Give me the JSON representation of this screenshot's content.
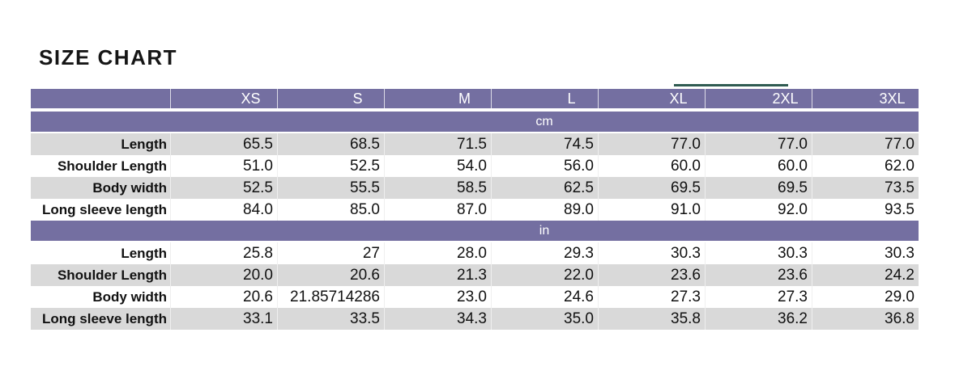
{
  "title": "SIZE CHART",
  "colors": {
    "header_purple": "#746FA1",
    "band_gray": "#D9D9D9",
    "selection_teal": "#2F5B51",
    "text_black": "#161616"
  },
  "table": {
    "size_headers": [
      "XS",
      "S",
      "M",
      "L",
      "XL",
      "2XL",
      "3XL"
    ],
    "sections": [
      {
        "unit": "cm",
        "rows": [
          {
            "label": "Length",
            "values": [
              "65.5",
              "68.5",
              "71.5",
              "74.5",
              "77.0",
              "77.0",
              "77.0"
            ]
          },
          {
            "label": "Shoulder Length",
            "values": [
              "51.0",
              "52.5",
              "54.0",
              "56.0",
              "60.0",
              "60.0",
              "62.0"
            ]
          },
          {
            "label": "Body width",
            "values": [
              "52.5",
              "55.5",
              "58.5",
              "62.5",
              "69.5",
              "69.5",
              "73.5"
            ]
          },
          {
            "label": "Long sleeve length",
            "values": [
              "84.0",
              "85.0",
              "87.0",
              "89.0",
              "91.0",
              "92.0",
              "93.5"
            ]
          }
        ]
      },
      {
        "unit": "in",
        "rows": [
          {
            "label": "Length",
            "values": [
              "25.8",
              "27",
              "28.0",
              "29.3",
              "30.3",
              "30.3",
              "30.3"
            ]
          },
          {
            "label": "Shoulder Length",
            "values": [
              "20.0",
              "20.6",
              "21.3",
              "22.0",
              "23.6",
              "23.6",
              "24.2"
            ]
          },
          {
            "label": "Body width",
            "values": [
              "20.6",
              "21.85714286",
              "23.0",
              "24.6",
              "27.3",
              "27.3",
              "29.0"
            ]
          },
          {
            "label": "Long sleeve length",
            "values": [
              "33.1",
              "33.5",
              "34.3",
              "35.0",
              "35.8",
              "36.2",
              "36.8"
            ]
          }
        ]
      }
    ]
  },
  "chart_data": {
    "type": "table",
    "title": "SIZE CHART",
    "columns": [
      "",
      "XS",
      "S",
      "M",
      "L",
      "XL",
      "2XL",
      "3XL"
    ],
    "sections": [
      {
        "unit": "cm",
        "rows": [
          [
            "Length",
            65.5,
            68.5,
            71.5,
            74.5,
            77.0,
            77.0,
            77.0
          ],
          [
            "Shoulder Length",
            51.0,
            52.5,
            54.0,
            56.0,
            60.0,
            60.0,
            62.0
          ],
          [
            "Body width",
            52.5,
            55.5,
            58.5,
            62.5,
            69.5,
            69.5,
            73.5
          ],
          [
            "Long sleeve length",
            84.0,
            85.0,
            87.0,
            89.0,
            91.0,
            92.0,
            93.5
          ]
        ]
      },
      {
        "unit": "in",
        "rows": [
          [
            "Length",
            25.8,
            27,
            28.0,
            29.3,
            30.3,
            30.3,
            30.3
          ],
          [
            "Shoulder Length",
            20.0,
            20.6,
            21.3,
            22.0,
            23.6,
            23.6,
            24.2
          ],
          [
            "Body width",
            20.6,
            21.85714286,
            23.0,
            24.6,
            27.3,
            27.3,
            29.0
          ],
          [
            "Long sleeve length",
            33.1,
            33.5,
            34.3,
            35.0,
            35.8,
            36.2,
            36.8
          ]
        ]
      }
    ]
  }
}
